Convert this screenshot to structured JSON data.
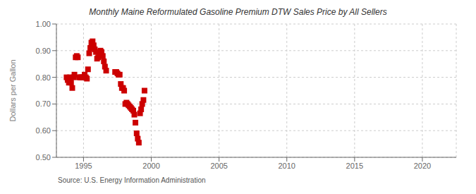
{
  "chart_data": {
    "type": "scatter",
    "title": "Monthly Maine Reformulated Gasoline Premium DTW Sales Price by All Sellers",
    "ylabel": "Dollars per Gallon",
    "annotations": [
      "Source: U.S. Energy Information Administration"
    ],
    "color": "#cc0000",
    "marker": "square",
    "grid": true,
    "xlim": [
      1993.0,
      2022.5
    ],
    "ylim": [
      0.5,
      1.0
    ],
    "xticks": [
      1995,
      2000,
      2005,
      2010,
      2015,
      2020
    ],
    "yticks": [
      {
        "value": 0.5,
        "label": "0.50"
      },
      {
        "value": 0.6,
        "label": "0.60"
      },
      {
        "value": 0.7,
        "label": "0.70"
      },
      {
        "value": 0.8,
        "label": "0.80"
      },
      {
        "value": 0.9,
        "label": "0.90"
      },
      {
        "value": 1.0,
        "label": "1.00"
      }
    ],
    "x": [
      1993.75,
      1993.83,
      1993.92,
      1994.0,
      1994.08,
      1994.17,
      1994.25,
      1994.33,
      1994.42,
      1994.5,
      1994.58,
      1994.67,
      1994.75,
      1994.83,
      1994.92,
      1995.0,
      1995.08,
      1995.17,
      1995.25,
      1995.33,
      1995.42,
      1995.5,
      1995.58,
      1995.67,
      1995.75,
      1995.83,
      1995.92,
      1996.0,
      1996.08,
      1996.17,
      1996.25,
      1996.33,
      1996.42,
      1996.5,
      1996.58,
      1996.67,
      1997.33,
      1997.42,
      1997.5,
      1997.58,
      1997.67,
      1997.75,
      1997.83,
      1997.92,
      1998.0,
      1998.08,
      1998.17,
      1998.25,
      1998.33,
      1998.42,
      1998.5,
      1998.58,
      1998.67,
      1998.75,
      1998.83,
      1998.92,
      1999.0,
      1999.08,
      1999.17,
      1999.25,
      1999.33,
      1999.42,
      1999.5
    ],
    "values": [
      0.8,
      0.79,
      0.78,
      0.8,
      0.78,
      0.76,
      0.8,
      0.81,
      0.875,
      0.88,
      0.875,
      0.8,
      0.8,
      0.8,
      0.8,
      0.8,
      0.81,
      0.8,
      0.795,
      0.83,
      0.89,
      0.91,
      0.93,
      0.935,
      0.92,
      0.905,
      0.895,
      0.87,
      0.875,
      0.885,
      0.9,
      0.895,
      0.88,
      0.86,
      0.84,
      0.825,
      0.82,
      0.82,
      0.815,
      0.81,
      0.81,
      0.775,
      0.76,
      0.76,
      0.75,
      0.7,
      0.705,
      0.7,
      0.695,
      0.69,
      0.685,
      0.68,
      0.675,
      0.66,
      0.63,
      0.59,
      0.57,
      0.555,
      0.665,
      0.68,
      0.7,
      0.715,
      0.75
    ]
  }
}
